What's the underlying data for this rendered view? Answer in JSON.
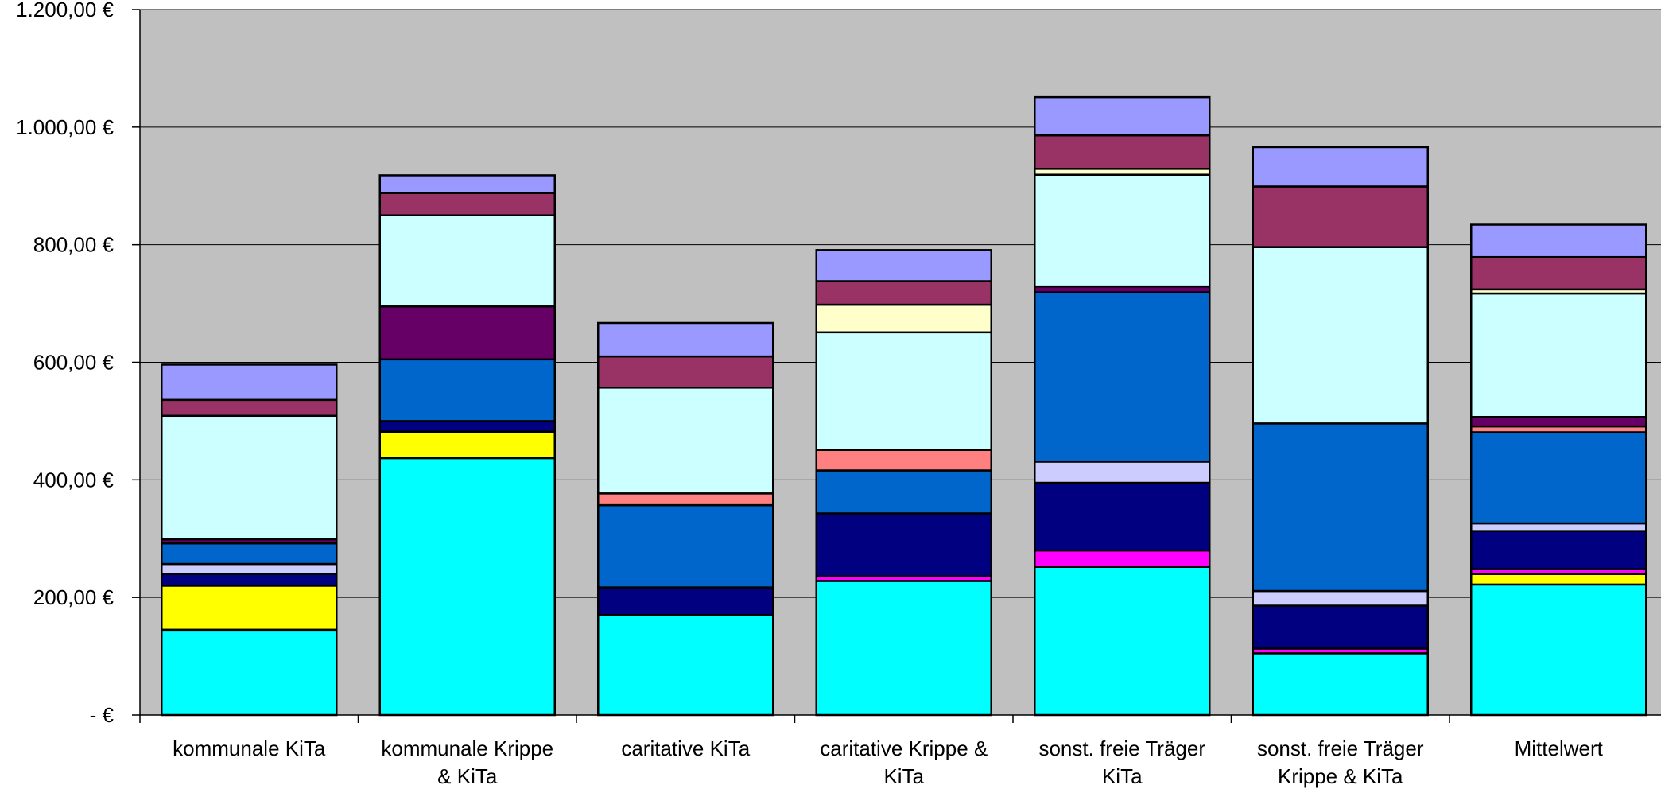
{
  "chart_data": {
    "type": "bar",
    "stacked": true,
    "title": "",
    "xlabel": "",
    "ylabel": "",
    "ylim": [
      0,
      1200
    ],
    "y_ticks": [
      "-   €",
      "200,00 €",
      "400,00 €",
      "600,00 €",
      "800,00 €",
      "1.000,00 €",
      "1.200,00 €"
    ],
    "grid": true,
    "legend": "none",
    "plot_background": "#C0C0C0",
    "categories": [
      "kommunale KiTa",
      "kommunale Krippe & KiTa",
      "caritative KiTa",
      "caritative Krippe & KiTa",
      "sonst. freie Träger KiTa",
      "sonst. freie Träger Krippe & KiTa",
      "Mittelwert"
    ],
    "category_lines": [
      [
        "kommunale KiTa"
      ],
      [
        "kommunale Krippe",
        "& KiTa"
      ],
      [
        "caritative KiTa"
      ],
      [
        "caritative Krippe &",
        "KiTa"
      ],
      [
        "sonst. freie Träger",
        "KiTa"
      ],
      [
        "sonst. freie Träger",
        "Krippe & KiTa"
      ],
      [
        "Mittelwert"
      ]
    ],
    "series": [
      {
        "color": "#00FFFF",
        "values": [
          145,
          437,
          170,
          228,
          252,
          105,
          222
        ]
      },
      {
        "color": "#FFFF00",
        "values": [
          75,
          45,
          0,
          0,
          0,
          0,
          18
        ]
      },
      {
        "color": "#FF00FF",
        "values": [
          0,
          0,
          0,
          8,
          28,
          8,
          8
        ]
      },
      {
        "color": "#000080",
        "values": [
          20,
          18,
          47,
          107,
          115,
          73,
          65
        ]
      },
      {
        "color": "#CCCCFF",
        "values": [
          17,
          0,
          0,
          0,
          36,
          25,
          13
        ]
      },
      {
        "color": "#0066CC",
        "values": [
          35,
          105,
          140,
          73,
          288,
          285,
          155
        ]
      },
      {
        "color": "#FF8080",
        "values": [
          0,
          0,
          20,
          35,
          0,
          0,
          10
        ]
      },
      {
        "color": "#660066",
        "values": [
          7,
          90,
          0,
          0,
          10,
          0,
          16
        ]
      },
      {
        "color": "#CCFFFF",
        "values": [
          210,
          155,
          180,
          200,
          190,
          300,
          210
        ]
      },
      {
        "color": "#FFFFCC",
        "values": [
          0,
          0,
          0,
          47,
          10,
          0,
          7
        ]
      },
      {
        "color": "#993366",
        "values": [
          27,
          38,
          53,
          40,
          57,
          103,
          55
        ]
      },
      {
        "color": "#9999FF",
        "values": [
          60,
          30,
          57,
          53,
          65,
          67,
          55
        ]
      }
    ]
  }
}
